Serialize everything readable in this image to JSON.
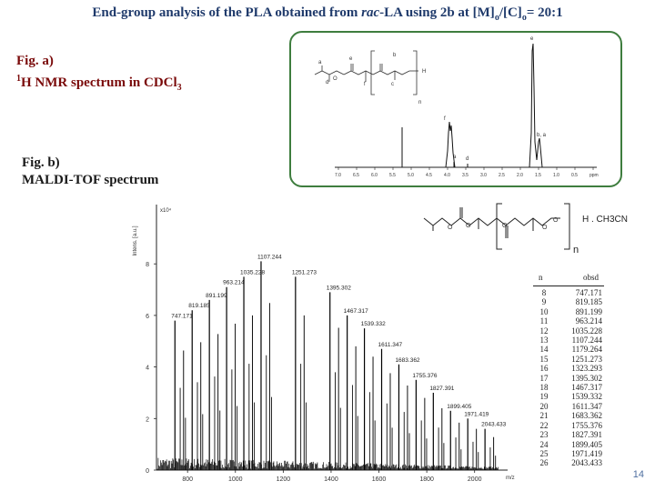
{
  "slide": {
    "title_part1": "End-group analysis of the PLA obtained from ",
    "title_italic": "rac",
    "title_part2": "-LA using 2b at [M]",
    "title_sub1": "o",
    "title_part3": "/[C]",
    "title_sub2": "o",
    "title_part4": "= 20:1",
    "fig_a_line1": "Fig. a)",
    "fig_a_sup": "1",
    "fig_a_line2": "H NMR spectrum in CDCl",
    "fig_a_sub": "3",
    "fig_b_line1": "Fig. b)",
    "fig_b_line2": "MALDI-TOF spectrum",
    "page_number": "14"
  },
  "nmr": {
    "x_ticks": [
      "7.0",
      "6.5",
      "6.0",
      "5.5",
      "5.0",
      "4.5",
      "4.0",
      "3.5",
      "3.0",
      "2.5",
      "2.0",
      "1.5",
      "1.0",
      "0.5",
      "ppm"
    ],
    "peak_labels": [
      "e",
      "f",
      "a",
      "d",
      "b, a"
    ],
    "structure_labels": [
      "a",
      "b",
      "c",
      "d",
      "e",
      "f",
      "n",
      "H",
      "O"
    ]
  },
  "chart_data": {
    "type": "bar",
    "title": "",
    "xlabel": "m/z",
    "ylabel": "Intens. [a.u.]",
    "y_multiplier": "x10⁴",
    "xlim": [
      670,
      2100
    ],
    "ylim": [
      0,
      10.3
    ],
    "x_ticks": [
      800,
      1000,
      1200,
      1400,
      1600,
      1800,
      2000
    ],
    "y_ticks": [
      0,
      2,
      4,
      6,
      8
    ],
    "labeled_peaks": [
      {
        "mz": 747.171,
        "intensity": 5.8,
        "label": "747.171"
      },
      {
        "mz": 819.185,
        "intensity": 6.2,
        "label": "819.185"
      },
      {
        "mz": 891.199,
        "intensity": 6.6,
        "label": "891.199"
      },
      {
        "mz": 963.214,
        "intensity": 7.1,
        "label": "963.214"
      },
      {
        "mz": 1035.228,
        "intensity": 7.5,
        "label": "1035.228"
      },
      {
        "mz": 1107.244,
        "intensity": 8.1,
        "label": "1107.244"
      },
      {
        "mz": 1251.273,
        "intensity": 7.5,
        "label": "1251.273"
      },
      {
        "mz": 1395.302,
        "intensity": 6.9,
        "label": "1395.302"
      },
      {
        "mz": 1467.317,
        "intensity": 6.0,
        "label": "1467.317"
      },
      {
        "mz": 1539.332,
        "intensity": 5.5,
        "label": "1539.332"
      },
      {
        "mz": 1611.347,
        "intensity": 4.7,
        "label": "1611.347"
      },
      {
        "mz": 1683.362,
        "intensity": 4.1,
        "label": "1683.362"
      },
      {
        "mz": 1755.376,
        "intensity": 3.5,
        "label": "1755.376"
      },
      {
        "mz": 1827.391,
        "intensity": 3.0,
        "label": "1827.391"
      },
      {
        "mz": 1899.405,
        "intensity": 2.3,
        "label": "1899.405"
      },
      {
        "mz": 1971.419,
        "intensity": 2.0,
        "label": "1971.419"
      },
      {
        "mz": 2043.433,
        "intensity": 1.6,
        "label": "2043.433"
      }
    ]
  },
  "structure_b": {
    "suffix": "H . CH3CN",
    "repeat": "n"
  },
  "table": {
    "col1_header": "n",
    "col2_header": "obsd",
    "rows": [
      [
        "8",
        "747.171"
      ],
      [
        "9",
        "819.185"
      ],
      [
        "10",
        "891.199"
      ],
      [
        "11",
        "963.214"
      ],
      [
        "12",
        "1035.228"
      ],
      [
        "13",
        "1107.244"
      ],
      [
        "14",
        "1179.264"
      ],
      [
        "15",
        "1251.273"
      ],
      [
        "16",
        "1323.293"
      ],
      [
        "17",
        "1395.302"
      ],
      [
        "18",
        "1467.317"
      ],
      [
        "19",
        "1539.332"
      ],
      [
        "20",
        "1611.347"
      ],
      [
        "21",
        "1683.362"
      ],
      [
        "22",
        "1755.376"
      ],
      [
        "23",
        "1827.391"
      ],
      [
        "24",
        "1899.405"
      ],
      [
        "25",
        "1971.419"
      ],
      [
        "26",
        "2043.433"
      ]
    ]
  }
}
